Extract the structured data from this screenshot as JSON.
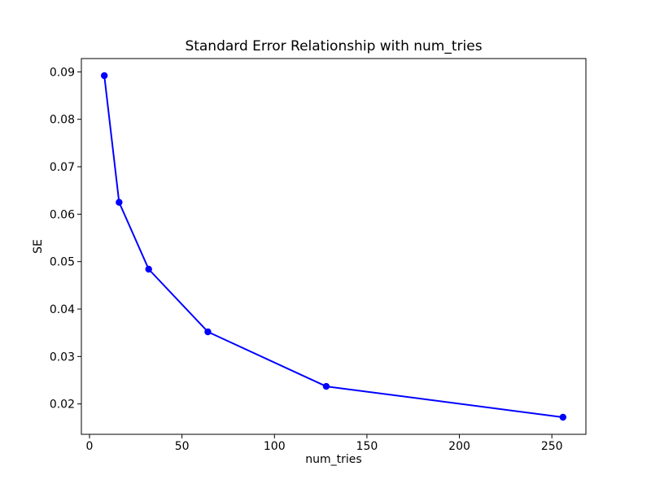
{
  "figure": {
    "background_color": "#ffffff",
    "axes_color": "#000000",
    "text_color": "#000000"
  },
  "chart_data": {
    "type": "line",
    "title": "Standard Error Relationship with num_tries",
    "xlabel": "num_tries",
    "ylabel": "SE",
    "x": [
      8,
      16,
      32,
      64,
      128,
      256
    ],
    "y": [
      0.0892,
      0.0625,
      0.0484,
      0.0352,
      0.0237,
      0.0172
    ],
    "line_color": "#0000ff",
    "marker": "circle",
    "marker_radius": 4.2,
    "line_width": 2,
    "xlim": [
      -4.4,
      268.4
    ],
    "ylim": [
      0.0136,
      0.0928
    ],
    "xticks": [
      0,
      50,
      100,
      150,
      200,
      250
    ],
    "yticks": [
      0.02,
      0.03,
      0.04,
      0.05,
      0.06,
      0.07,
      0.08,
      0.09
    ],
    "ytick_decimals": 2,
    "grid": false,
    "legend": null
  }
}
